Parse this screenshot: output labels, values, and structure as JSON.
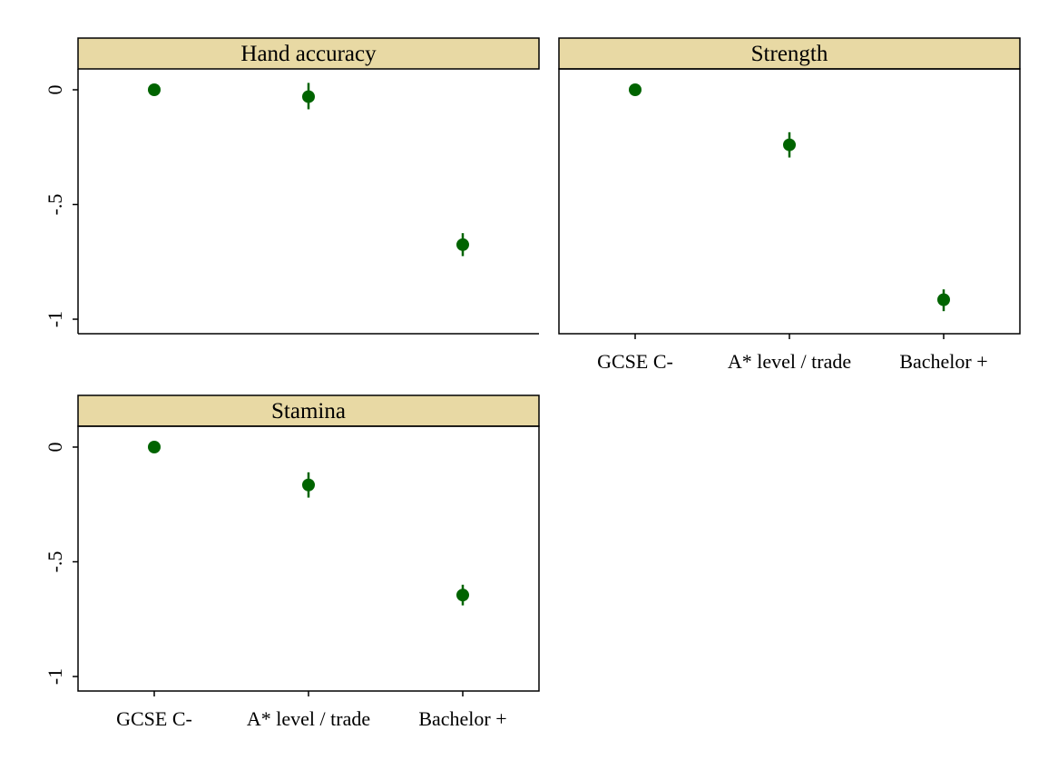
{
  "chart_data": {
    "type": "scatter",
    "layout": "facet-grid 2x2",
    "categories": [
      "GCSE C-",
      "A* level / trade",
      "Bachelor +"
    ],
    "y_ticks": [
      0,
      -0.5,
      -1
    ],
    "y_tick_labels": [
      "0",
      "-.5",
      "-1"
    ],
    "ylim": [
      -1.07,
      0.08
    ],
    "grid": false,
    "colors": {
      "marker": "#006400",
      "strip_fill": "#e8d9a4",
      "frame": "#000000"
    },
    "panels": [
      {
        "title": "Hand accuracy",
        "values": [
          0,
          -0.03,
          -0.675
        ],
        "ci_low": [
          0,
          -0.085,
          -0.725
        ],
        "ci_high": [
          0,
          0.03,
          -0.625
        ],
        "show_x_labels": false
      },
      {
        "title": "Strength",
        "values": [
          0,
          -0.24,
          -0.915
        ],
        "ci_low": [
          0,
          -0.295,
          -0.965
        ],
        "ci_high": [
          0,
          -0.185,
          -0.87
        ],
        "show_x_labels": true
      },
      {
        "title": "Stamina",
        "values": [
          0,
          -0.165,
          -0.645
        ],
        "ci_low": [
          0,
          -0.22,
          -0.69
        ],
        "ci_high": [
          0,
          -0.11,
          -0.6
        ],
        "show_x_labels": true
      }
    ]
  }
}
